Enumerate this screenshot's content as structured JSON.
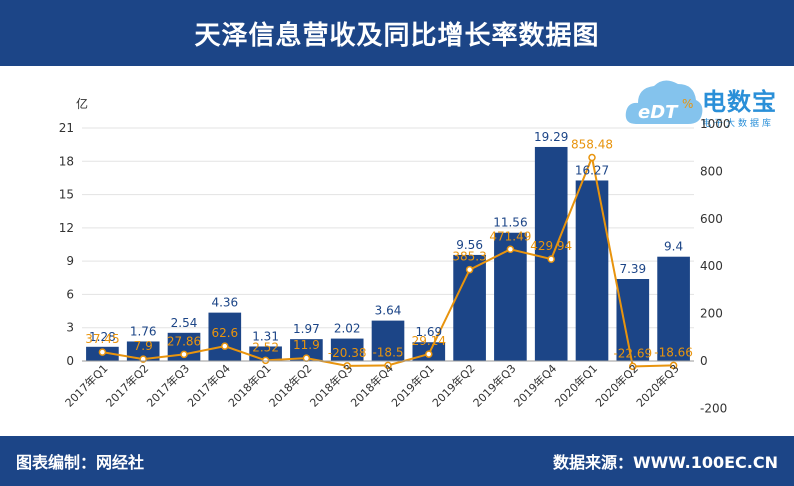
{
  "header": {
    "title": "天泽信息营收及同比增长率数据图"
  },
  "logo": {
    "name": "电数宝",
    "tagline": "电子大数据库",
    "mark": "eDT"
  },
  "footer": {
    "left": "图表编制：网经社",
    "right": "数据来源：WWW.100EC.CN"
  },
  "colors": {
    "bar": "#1c4587",
    "line": "#e8940e",
    "header": "#1c4587"
  },
  "chart_data": {
    "type": "bar",
    "categories": [
      "2017年Q1",
      "2017年Q2",
      "2017年Q3",
      "2017年Q4",
      "2018年Q1",
      "2018年Q2",
      "2018年Q3",
      "2018年Q4",
      "2019年Q1",
      "2019年Q2",
      "2019年Q3",
      "2019年Q4",
      "2020年Q1",
      "2020年Q2",
      "2020年Q3"
    ],
    "series": [
      {
        "kind": "bar",
        "axis": "left",
        "values": [
          1.28,
          1.76,
          2.54,
          4.36,
          1.31,
          1.97,
          2.02,
          3.64,
          1.69,
          9.56,
          11.56,
          19.29,
          16.27,
          7.39,
          9.4
        ]
      },
      {
        "kind": "line",
        "axis": "right",
        "values": [
          37.45,
          7.9,
          27.86,
          62.6,
          2.52,
          11.9,
          -20.38,
          -18.5,
          29.14,
          385.3,
          471.49,
          429.94,
          858.48,
          -22.69,
          -18.66
        ]
      }
    ],
    "left_unit": "亿",
    "right_unit": "%",
    "left_ticks": [
      0,
      3,
      6,
      9,
      12,
      15,
      18,
      21
    ],
    "right_ticks": [
      -200,
      0,
      200,
      400,
      600,
      800,
      1000
    ],
    "left_ylim": [
      0,
      21
    ],
    "right_ylim": [
      -200,
      1000
    ],
    "grid": true
  }
}
